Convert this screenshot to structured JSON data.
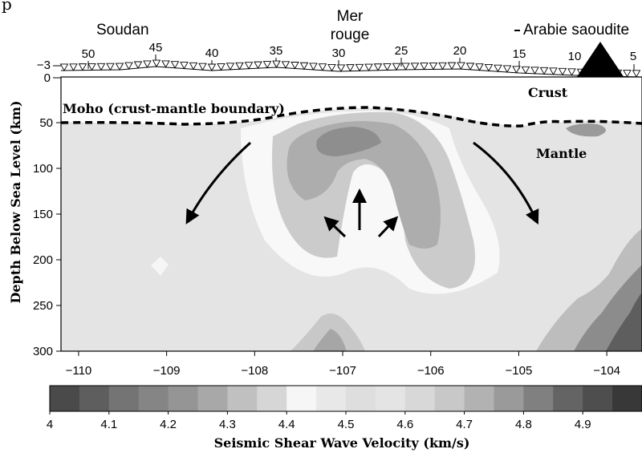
{
  "page_title_fragment": "p",
  "annotations": {
    "region_left": "Soudan",
    "region_center": [
      "Mer",
      "rouge"
    ],
    "region_right": "Arabie saoudite",
    "moho_label": "Moho (crust-mantle boundary)",
    "crust_label": "Crust",
    "mantle_label": "Mantle"
  },
  "top_axis": {
    "ticks": [
      "50",
      "45",
      "40",
      "35",
      "30",
      "25",
      "20",
      "15",
      "10",
      "5"
    ]
  },
  "elevation_axis": {
    "ticks": [
      "−3",
      "0"
    ]
  },
  "depth_axis": {
    "label": "Depth Below Sea Level (km)",
    "ticks": [
      "50",
      "100",
      "150",
      "200",
      "250",
      "300"
    ],
    "range": [
      0,
      300
    ]
  },
  "longitude_axis": {
    "ticks": [
      "−110",
      "−109",
      "−108",
      "−107",
      "−106",
      "−105",
      "−104"
    ],
    "range": [
      -110.2,
      -103.6
    ]
  },
  "colorbar": {
    "label": "Seismic Shear Wave Velocity (km/s)",
    "ticks": [
      "4",
      "4.1",
      "4.2",
      "4.3",
      "4.4",
      "4.5",
      "4.6",
      "4.7",
      "4.8",
      "4.9"
    ],
    "range": [
      4.0,
      5.0
    ],
    "bins": [
      4.0,
      4.05,
      4.1,
      4.15,
      4.2,
      4.25,
      4.3,
      4.35,
      4.4,
      4.45,
      4.5,
      4.55,
      4.6,
      4.65,
      4.7,
      4.75,
      4.8,
      4.85,
      4.9,
      4.95
    ]
  },
  "colors": {
    "background_mantle": "#e6e6e6",
    "upwelling_core": "#f7f7f7",
    "slow_anomaly": "#a9a9a9",
    "fast_anomaly": "#707070",
    "moho_line": "#000000"
  }
}
